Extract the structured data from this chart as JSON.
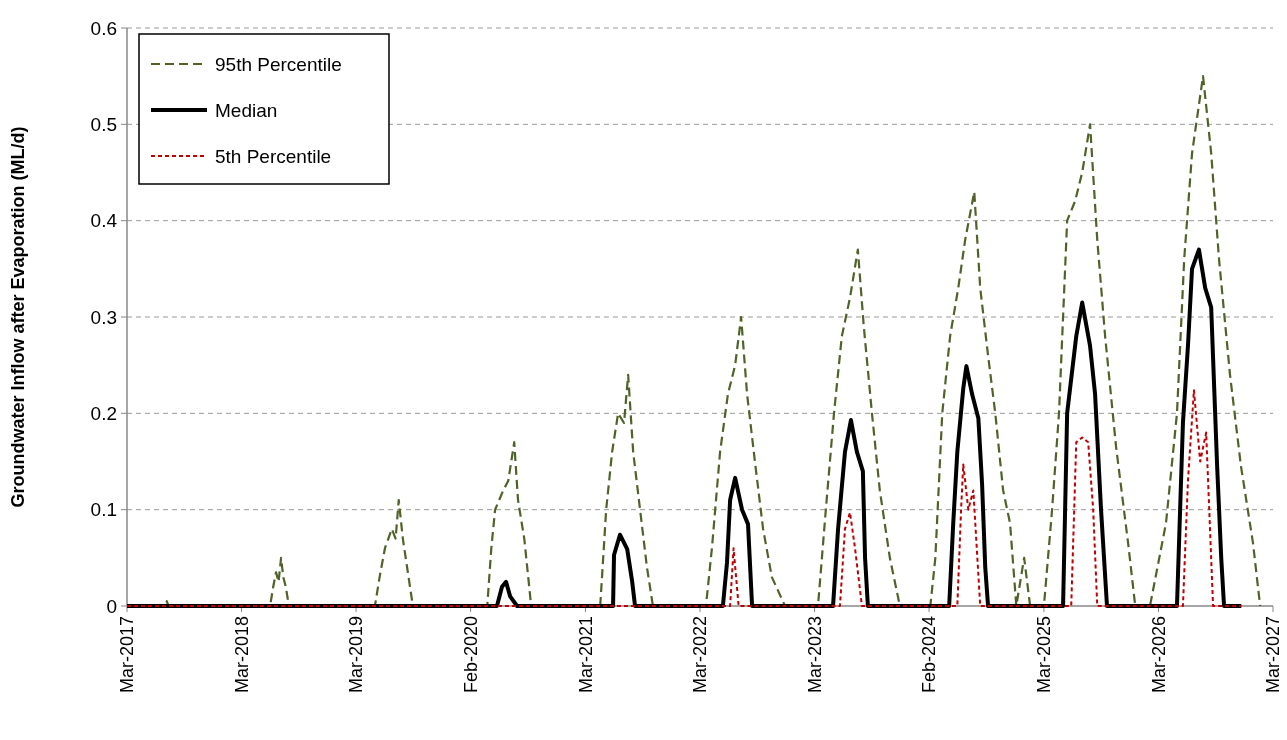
{
  "chart_data": {
    "type": "line",
    "ylabel": "Groundwater Inflow after Evaporation (ML/d)",
    "xlim": [
      "2017-03-01",
      "2027-03-01"
    ],
    "xticks": [
      {
        "value": "2017-03-01",
        "label": "Mar-2017"
      },
      {
        "value": "2018-03-01",
        "label": "Mar-2018"
      },
      {
        "value": "2019-03-01",
        "label": "Mar-2019"
      },
      {
        "value": "2020-02-29",
        "label": "Feb-2020"
      },
      {
        "value": "2021-03-01",
        "label": "Mar-2021"
      },
      {
        "value": "2022-03-01",
        "label": "Mar-2022"
      },
      {
        "value": "2023-03-01",
        "label": "Mar-2023"
      },
      {
        "value": "2024-02-29",
        "label": "Feb-2024"
      },
      {
        "value": "2025-03-01",
        "label": "Mar-2025"
      },
      {
        "value": "2026-03-01",
        "label": "Mar-2026"
      },
      {
        "value": "2027-03-01",
        "label": "Mar-2027"
      }
    ],
    "ylim": [
      0,
      0.6
    ],
    "yticks": [
      0,
      0.1,
      0.2,
      0.3,
      0.4,
      0.5,
      0.6
    ],
    "grid": "y",
    "legend": "top left",
    "series": [
      {
        "name": "95th Percentile",
        "color": "#4f6228",
        "line_style": "dashed",
        "x": [
          "2017-03-01",
          "2017-07-01",
          "2017-07-06",
          "2017-07-11",
          "2018-05-31",
          "2018-06-10",
          "2018-06-19",
          "2018-06-27",
          "2018-07-05",
          "2018-07-12",
          "2018-07-20",
          "2018-07-30",
          "2019-04-30",
          "2019-05-15",
          "2019-06-01",
          "2019-06-23",
          "2019-07-05",
          "2019-07-15",
          "2019-07-28",
          "2019-08-13",
          "2019-08-29",
          "2020-04-22",
          "2020-05-05",
          "2020-05-17",
          "2020-06-12",
          "2020-06-28",
          "2020-07-17",
          "2020-07-29",
          "2020-08-18",
          "2020-09-09",
          "2021-04-17",
          "2021-05-06",
          "2021-05-25",
          "2021-06-13",
          "2021-07-02",
          "2021-07-15",
          "2021-07-31",
          "2021-08-22",
          "2021-09-13",
          "2021-10-02",
          "2022-03-20",
          "2022-04-08",
          "2022-05-04",
          "2022-05-29",
          "2022-06-21",
          "2022-07-10",
          "2022-07-29",
          "2022-08-23",
          "2022-09-18",
          "2022-10-16",
          "2022-11-27",
          "2023-03-12",
          "2023-04-06",
          "2023-05-02",
          "2023-05-27",
          "2023-06-22",
          "2023-07-17",
          "2023-08-05",
          "2023-08-31",
          "2023-09-25",
          "2023-10-27",
          "2023-11-28",
          "2024-03-04",
          "2024-03-20",
          "2024-04-11",
          "2024-05-06",
          "2024-06-01",
          "2024-06-23",
          "2024-07-22",
          "2024-08-10",
          "2024-09-04",
          "2024-09-27",
          "2024-10-22",
          "2024-11-13",
          "2024-12-03",
          "2024-12-28",
          "2025-01-16",
          "2025-03-01",
          "2025-03-27",
          "2025-04-18",
          "2025-05-14",
          "2025-06-08",
          "2025-07-01",
          "2025-07-26",
          "2025-08-18",
          "2025-09-12",
          "2025-10-17",
          "2025-11-24",
          "2025-12-17",
          "2026-02-02",
          "2026-03-25",
          "2026-04-29",
          "2026-05-22",
          "2026-06-16",
          "2026-07-21",
          "2026-08-16",
          "2026-09-10",
          "2026-10-15",
          "2026-11-19",
          "2026-12-27",
          "2027-01-19"
        ],
        "values": [
          0,
          0,
          0.005,
          0,
          0,
          0.02,
          0.035,
          0.025,
          0.05,
          0.03,
          0.02,
          0,
          0,
          0.03,
          0.06,
          0.08,
          0.07,
          0.11,
          0.07,
          0.035,
          0,
          0,
          0.06,
          0.1,
          0.12,
          0.13,
          0.17,
          0.11,
          0.07,
          0,
          0,
          0.1,
          0.16,
          0.2,
          0.19,
          0.24,
          0.16,
          0.1,
          0.04,
          0,
          0,
          0.06,
          0.16,
          0.22,
          0.25,
          0.3,
          0.22,
          0.15,
          0.08,
          0.03,
          0,
          0,
          0.1,
          0.2,
          0.28,
          0.32,
          0.37,
          0.29,
          0.2,
          0.12,
          0.05,
          0,
          0,
          0.05,
          0.2,
          0.28,
          0.33,
          0.38,
          0.43,
          0.33,
          0.26,
          0.2,
          0.12,
          0.086,
          0,
          0.05,
          0,
          0,
          0.1,
          0.2,
          0.4,
          0.42,
          0.45,
          0.5,
          0.38,
          0.28,
          0.165,
          0.066,
          0,
          0,
          0.086,
          0.2,
          0.36,
          0.47,
          0.55,
          0.47,
          0.36,
          0.24,
          0.145,
          0.066,
          0
        ]
      },
      {
        "name": "Median",
        "color": "#000000",
        "line_style": "solid",
        "x": [
          "2017-03-01",
          "2020-05-23",
          "2020-06-08",
          "2020-06-21",
          "2020-07-04",
          "2020-07-26",
          "2021-05-28",
          "2021-05-31",
          "2021-06-19",
          "2021-07-12",
          "2021-07-28",
          "2021-08-06",
          "2022-05-13",
          "2022-05-26",
          "2022-06-05",
          "2022-06-21",
          "2022-07-13",
          "2022-08-01",
          "2022-08-14",
          "2023-04-29",
          "2023-05-15",
          "2023-06-06",
          "2023-06-25",
          "2023-07-14",
          "2023-08-02",
          "2023-08-09",
          "2023-08-18",
          "2024-05-03",
          "2024-05-16",
          "2024-05-29",
          "2024-06-17",
          "2024-06-27",
          "2024-07-15",
          "2024-08-04",
          "2024-08-16",
          "2024-08-26",
          "2024-09-04",
          "2025-05-01",
          "2025-05-14",
          "2025-06-12",
          "2025-07-01",
          "2025-07-26",
          "2025-08-11",
          "2025-08-30",
          "2025-09-18",
          "2026-04-29",
          "2026-05-18",
          "2026-06-03",
          "2026-06-16",
          "2026-07-08",
          "2026-07-28",
          "2026-08-16",
          "2026-09-04",
          "2026-09-17",
          "2026-09-26",
          "2026-11-20"
        ],
        "values": [
          0,
          0,
          0.02,
          0.025,
          0.01,
          0,
          0,
          0.053,
          0.074,
          0.059,
          0.025,
          0,
          0,
          0.045,
          0.11,
          0.133,
          0.1,
          0.085,
          0,
          0,
          0.08,
          0.16,
          0.193,
          0.16,
          0.14,
          0.05,
          0,
          0,
          0.086,
          0.16,
          0.226,
          0.249,
          0.22,
          0.195,
          0.126,
          0.04,
          0,
          0,
          0.2,
          0.28,
          0.315,
          0.27,
          0.22,
          0.1,
          0,
          0,
          0.19,
          0.27,
          0.35,
          0.37,
          0.33,
          0.31,
          0.145,
          0.05,
          0,
          0
        ]
      },
      {
        "name": "5th Percentile",
        "color": "#c00000",
        "line_style": "dotted",
        "x": [
          "2017-03-01",
          "2022-06-05",
          "2022-06-16",
          "2022-06-24",
          "2022-07-02",
          "2023-05-21",
          "2023-06-06",
          "2023-06-22",
          "2023-07-08",
          "2023-07-30",
          "2024-05-29",
          "2024-06-10",
          "2024-06-17",
          "2024-07-03",
          "2024-07-19",
          "2024-08-10",
          "2025-05-27",
          "2025-06-12",
          "2025-07-01",
          "2025-07-20",
          "2025-08-05",
          "2025-08-18",
          "2026-05-18",
          "2026-06-03",
          "2026-06-22",
          "2026-07-12",
          "2026-07-31",
          "2026-08-22",
          "2026-11-20"
        ],
        "values": [
          0,
          0,
          0.06,
          0.03,
          0,
          0,
          0.08,
          0.097,
          0.06,
          0,
          0,
          0.1,
          0.147,
          0.1,
          0.12,
          0,
          0,
          0.17,
          0.175,
          0.17,
          0.1,
          0,
          0,
          0.13,
          0.224,
          0.15,
          0.18,
          0,
          0
        ]
      }
    ]
  }
}
